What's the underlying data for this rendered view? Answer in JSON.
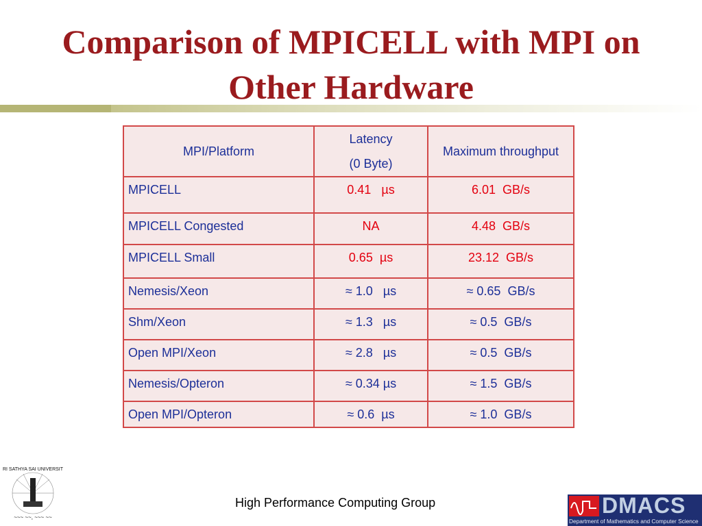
{
  "title": {
    "line1": "Comparison of MPICELL with MPI on",
    "line2": "Other Hardware"
  },
  "table": {
    "headers": {
      "platform": "MPI/Platform",
      "latency_line1": "Latency",
      "latency_line2": "(0 Byte)",
      "throughput": "Maximum throughput"
    },
    "rows": [
      {
        "platform": "MPICELL",
        "latency": "0.41   µs",
        "throughput": "6.01  GB/s",
        "highlight": true
      },
      {
        "platform": "MPICELL Congested",
        "latency": "NA",
        "throughput": "4.48  GB/s",
        "highlight": true
      },
      {
        "platform": "MPICELL Small",
        "latency": "0.65  µs",
        "throughput": "23.12  GB/s",
        "highlight": true
      },
      {
        "platform": "Nemesis/Xeon",
        "latency": "≈ 1.0   µs",
        "throughput": "≈ 0.65  GB/s",
        "highlight": false
      },
      {
        "platform": "Shm/Xeon",
        "latency": "≈ 1.3   µs",
        "throughput": "≈ 0.5  GB/s",
        "highlight": false
      },
      {
        "platform": "Open MPI/Xeon",
        "latency": "≈ 2.8   µs",
        "throughput": "≈ 0.5  GB/s",
        "highlight": false
      },
      {
        "platform": "Nemesis/Opteron",
        "latency": "≈ 0.34 µs",
        "throughput": "≈ 1.5  GB/s",
        "highlight": false
      },
      {
        "platform": "Open MPI/Opteron",
        "latency": "≈ 0.6  µs",
        "throughput": "≈ 1.0  GB/s",
        "highlight": false
      }
    ]
  },
  "footer": "High Performance Computing Group",
  "logos": {
    "left": "SRI SATHYA SAI UNIVERSITY",
    "right_name": "DMACS",
    "right_sub": "Department of Mathematics and Computer Science"
  }
}
